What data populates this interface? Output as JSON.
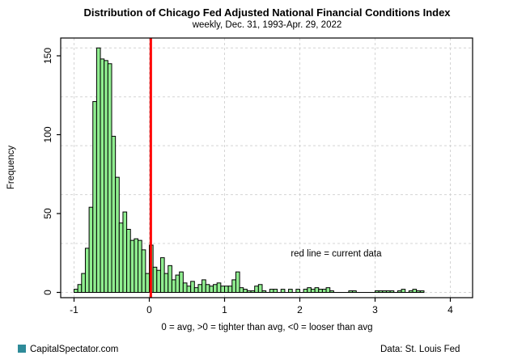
{
  "chart_data": {
    "type": "bar",
    "subtype": "histogram",
    "title": "Distribution of Chicago Fed Adjusted National Financial Conditions Index",
    "subtitle": "weekly, Dec. 31, 1993-Apr. 29, 2022",
    "xlabel": "0 = avg, >0 = tighter than avg, <0 = looser than avg",
    "ylabel": "Frequency",
    "bin_start": -1.0,
    "bin_width": 0.05,
    "counts": [
      2,
      5,
      12,
      28,
      54,
      121,
      155,
      148,
      147,
      145,
      99,
      73,
      44,
      51,
      40,
      33,
      34,
      33,
      27,
      12,
      30,
      16,
      14,
      22,
      12,
      17,
      8,
      11,
      13,
      6,
      4,
      7,
      3,
      5,
      8,
      5,
      4,
      5,
      6,
      4,
      4,
      4,
      8,
      13,
      3,
      2,
      1,
      1,
      4,
      5,
      1,
      0,
      2,
      2,
      0,
      2,
      0,
      2,
      0,
      2,
      0,
      2,
      3,
      2,
      3,
      2,
      2,
      3,
      1,
      0,
      0,
      0,
      0,
      1,
      1,
      0,
      0,
      0,
      0,
      0,
      1,
      1,
      1,
      1,
      1,
      0,
      1,
      2,
      0,
      1,
      2,
      1,
      1
    ],
    "xticks": [
      -1,
      0,
      1,
      2,
      3,
      4
    ],
    "yticks": [
      0,
      50,
      100,
      150
    ],
    "xlim": [
      -1.18,
      4.3
    ],
    "ylim": [
      0,
      161
    ],
    "grid_y_values": [
      0,
      31,
      62,
      93,
      124,
      155
    ],
    "grid_on": true,
    "red_line_x": 0.02,
    "annotation": {
      "text": "red line = current data",
      "x": 1.88,
      "y": 25
    },
    "colors": {
      "bar_fill": "#90EE90",
      "bar_stroke": "#000000",
      "red_line": "#FF0000",
      "grid": "#D4D4D4",
      "frame": "#000000"
    }
  },
  "footer": {
    "brand": "CapitalSpectator.com",
    "brand_color": "#2E8B99",
    "source": "Data: St. Louis Fed"
  }
}
